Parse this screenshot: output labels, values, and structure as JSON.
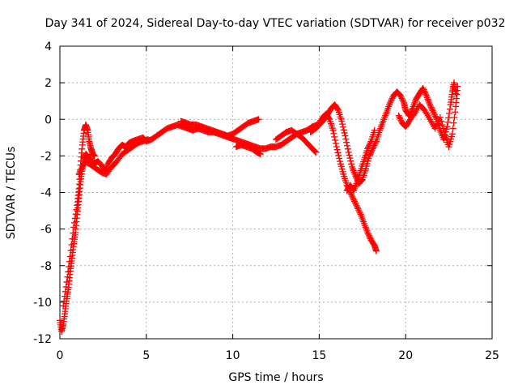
{
  "chart_data": {
    "type": "scatter",
    "title": "Day 341 of 2024, Sidereal Day-to-day VTEC variation (SDTVAR) for receiver p032",
    "xlabel": "GPS time / hours",
    "ylabel": "SDTVAR / TECUs",
    "xlim": [
      0,
      25
    ],
    "ylim": [
      -12,
      4
    ],
    "xticks": [
      0,
      5,
      10,
      15,
      20,
      25
    ],
    "yticks": [
      -12,
      -10,
      -8,
      -6,
      -4,
      -2,
      0,
      2,
      4
    ],
    "grid": true,
    "marker": "+",
    "color": "#ff0000",
    "series": [
      {
        "name": "p032",
        "segments": [
          [
            [
              0.0,
              -11.0
            ],
            [
              0.1,
              -11.6
            ],
            [
              0.2,
              -11.2
            ],
            [
              0.3,
              -10.5
            ],
            [
              0.4,
              -9.8
            ],
            [
              0.5,
              -9.2
            ],
            [
              0.6,
              -8.3
            ],
            [
              0.7,
              -7.6
            ],
            [
              0.8,
              -6.8
            ],
            [
              0.9,
              -6.2
            ],
            [
              1.0,
              -5.2
            ],
            [
              1.1,
              -4.3
            ],
            [
              1.2,
              -3.4
            ],
            [
              1.3,
              -2.7
            ],
            [
              1.4,
              -2.2
            ],
            [
              1.5,
              -1.9
            ],
            [
              1.6,
              -2.0
            ],
            [
              1.8,
              -2.2
            ],
            [
              2.0,
              -2.4
            ],
            [
              2.2,
              -2.3
            ],
            [
              2.4,
              -2.5
            ],
            [
              2.6,
              -2.8
            ],
            [
              2.8,
              -2.4
            ],
            [
              3.0,
              -2.1
            ],
            [
              3.2,
              -1.9
            ],
            [
              3.4,
              -1.6
            ],
            [
              3.6,
              -1.4
            ],
            [
              3.8,
              -1.5
            ],
            [
              4.0,
              -1.3
            ],
            [
              4.2,
              -1.2
            ],
            [
              4.5,
              -1.1
            ],
            [
              4.8,
              -1.0
            ],
            [
              5.0,
              -1.2
            ],
            [
              5.3,
              -1.1
            ],
            [
              5.6,
              -0.9
            ],
            [
              5.9,
              -0.7
            ],
            [
              6.2,
              -0.5
            ],
            [
              6.5,
              -0.4
            ],
            [
              6.8,
              -0.3
            ],
            [
              7.1,
              -0.4
            ],
            [
              7.4,
              -0.5
            ],
            [
              7.7,
              -0.6
            ],
            [
              8.0,
              -0.5
            ],
            [
              8.3,
              -0.6
            ],
            [
              8.6,
              -0.7
            ],
            [
              8.9,
              -0.7
            ],
            [
              9.2,
              -0.8
            ],
            [
              9.5,
              -0.9
            ],
            [
              9.8,
              -1.0
            ],
            [
              10.1,
              -1.1
            ],
            [
              10.4,
              -1.2
            ],
            [
              10.7,
              -1.3
            ],
            [
              11.0,
              -1.4
            ],
            [
              11.3,
              -1.5
            ],
            [
              11.6,
              -1.6
            ],
            [
              11.9,
              -1.6
            ],
            [
              12.2,
              -1.5
            ],
            [
              12.5,
              -1.5
            ],
            [
              12.8,
              -1.4
            ],
            [
              13.1,
              -1.2
            ],
            [
              13.4,
              -1.0
            ],
            [
              13.7,
              -0.8
            ],
            [
              14.0,
              -0.7
            ],
            [
              14.3,
              -0.6
            ],
            [
              14.6,
              -0.4
            ],
            [
              14.9,
              -0.3
            ],
            [
              15.2,
              0.1
            ],
            [
              15.4,
              0.3
            ],
            [
              15.6,
              0.0
            ],
            [
              15.8,
              -0.6
            ],
            [
              16.0,
              -1.5
            ],
            [
              16.2,
              -2.3
            ],
            [
              16.4,
              -3.0
            ],
            [
              16.6,
              -3.6
            ],
            [
              16.8,
              -4.0
            ],
            [
              17.0,
              -4.4
            ],
            [
              17.2,
              -4.8
            ],
            [
              17.4,
              -5.2
            ],
            [
              17.6,
              -5.7
            ],
            [
              17.8,
              -6.2
            ],
            [
              18.0,
              -6.6
            ],
            [
              18.2,
              -6.9
            ],
            [
              18.3,
              -7.2
            ]
          ],
          [
            [
              0.2,
              -10.2
            ],
            [
              0.4,
              -8.9
            ],
            [
              0.6,
              -7.5
            ],
            [
              0.8,
              -5.9
            ],
            [
              1.0,
              -4.7
            ],
            [
              1.1,
              -3.8
            ],
            [
              1.2,
              -2.5
            ],
            [
              1.3,
              -1.4
            ],
            [
              1.4,
              -0.6
            ],
            [
              1.5,
              -0.3
            ],
            [
              1.6,
              -0.6
            ],
            [
              1.7,
              -1.2
            ],
            [
              1.8,
              -1.6
            ],
            [
              1.9,
              -1.9
            ],
            [
              2.0,
              -2.0
            ]
          ],
          [
            [
              1.1,
              -3.0
            ],
            [
              1.3,
              -2.6
            ],
            [
              1.5,
              -2.3
            ],
            [
              1.8,
              -2.5
            ],
            [
              2.1,
              -2.7
            ],
            [
              2.4,
              -2.9
            ],
            [
              2.7,
              -3.0
            ],
            [
              3.0,
              -2.6
            ],
            [
              3.3,
              -2.3
            ],
            [
              3.6,
              -1.9
            ],
            [
              3.9,
              -1.7
            ],
            [
              4.2,
              -1.5
            ],
            [
              4.5,
              -1.3
            ],
            [
              4.8,
              -1.2
            ],
            [
              5.1,
              -1.1
            ]
          ],
          [
            [
              7.0,
              -0.1
            ],
            [
              7.3,
              -0.2
            ],
            [
              7.6,
              -0.3
            ],
            [
              7.9,
              -0.3
            ],
            [
              8.2,
              -0.4
            ],
            [
              8.5,
              -0.5
            ],
            [
              8.8,
              -0.6
            ],
            [
              9.1,
              -0.7
            ],
            [
              9.4,
              -0.8
            ],
            [
              9.7,
              -0.9
            ],
            [
              10.0,
              -0.8
            ],
            [
              10.3,
              -0.6
            ],
            [
              10.6,
              -0.4
            ],
            [
              10.9,
              -0.2
            ],
            [
              11.2,
              -0.1
            ],
            [
              11.5,
              0.0
            ]
          ],
          [
            [
              10.2,
              -1.5
            ],
            [
              10.5,
              -1.4
            ],
            [
              10.8,
              -1.5
            ],
            [
              11.1,
              -1.6
            ],
            [
              11.4,
              -1.8
            ],
            [
              11.6,
              -1.9
            ]
          ],
          [
            [
              12.5,
              -1.1
            ],
            [
              12.8,
              -0.9
            ],
            [
              13.1,
              -0.7
            ],
            [
              13.4,
              -0.6
            ],
            [
              13.7,
              -0.8
            ],
            [
              14.0,
              -1.0
            ],
            [
              14.3,
              -1.3
            ],
            [
              14.6,
              -1.6
            ],
            [
              14.8,
              -1.8
            ]
          ],
          [
            [
              14.5,
              -0.7
            ],
            [
              14.8,
              -0.5
            ],
            [
              15.0,
              -0.3
            ],
            [
              15.3,
              0.0
            ],
            [
              15.5,
              0.3
            ],
            [
              15.7,
              0.6
            ],
            [
              15.9,
              0.8
            ],
            [
              16.1,
              0.5
            ],
            [
              16.3,
              -0.1
            ],
            [
              16.5,
              -0.9
            ],
            [
              16.7,
              -1.8
            ],
            [
              16.9,
              -2.6
            ],
            [
              17.1,
              -3.1
            ],
            [
              17.3,
              -3.5
            ],
            [
              17.5,
              -3.3
            ],
            [
              17.7,
              -2.7
            ],
            [
              17.9,
              -2.0
            ],
            [
              18.1,
              -1.6
            ],
            [
              18.3,
              -1.2
            ],
            [
              18.5,
              -0.6
            ],
            [
              18.7,
              -0.1
            ],
            [
              18.9,
              0.4
            ],
            [
              19.1,
              0.9
            ],
            [
              19.3,
              1.3
            ],
            [
              19.5,
              1.5
            ],
            [
              19.7,
              1.3
            ],
            [
              19.9,
              0.9
            ],
            [
              20.0,
              0.5
            ],
            [
              20.2,
              0.2
            ],
            [
              20.4,
              0.6
            ],
            [
              20.6,
              1.1
            ],
            [
              20.8,
              1.4
            ],
            [
              21.0,
              1.7
            ],
            [
              21.2,
              1.3
            ],
            [
              21.4,
              0.8
            ],
            [
              21.6,
              0.4
            ],
            [
              21.8,
              0.0
            ],
            [
              22.0,
              -0.6
            ],
            [
              22.2,
              -1.1
            ],
            [
              22.4,
              -0.4
            ],
            [
              22.6,
              0.8
            ],
            [
              22.7,
              1.5
            ],
            [
              22.8,
              2.0
            ],
            [
              22.9,
              1.4
            ]
          ],
          [
            [
              16.6,
              -3.9
            ],
            [
              16.8,
              -3.6
            ],
            [
              17.0,
              -3.9
            ],
            [
              17.2,
              -3.4
            ],
            [
              17.4,
              -2.8
            ],
            [
              17.6,
              -2.2
            ],
            [
              17.8,
              -1.6
            ],
            [
              18.0,
              -1.2
            ],
            [
              18.2,
              -0.6
            ]
          ],
          [
            [
              19.6,
              0.2
            ],
            [
              19.8,
              -0.2
            ],
            [
              20.0,
              -0.4
            ],
            [
              20.2,
              -0.1
            ],
            [
              20.5,
              0.3
            ],
            [
              20.8,
              0.8
            ],
            [
              21.1,
              0.5
            ],
            [
              21.4,
              0.0
            ],
            [
              21.7,
              -0.5
            ],
            [
              22.0,
              0.1
            ],
            [
              22.3,
              -0.9
            ],
            [
              22.5,
              -1.5
            ],
            [
              22.7,
              -0.8
            ],
            [
              22.9,
              0.7
            ],
            [
              23.0,
              1.8
            ]
          ]
        ]
      }
    ]
  }
}
